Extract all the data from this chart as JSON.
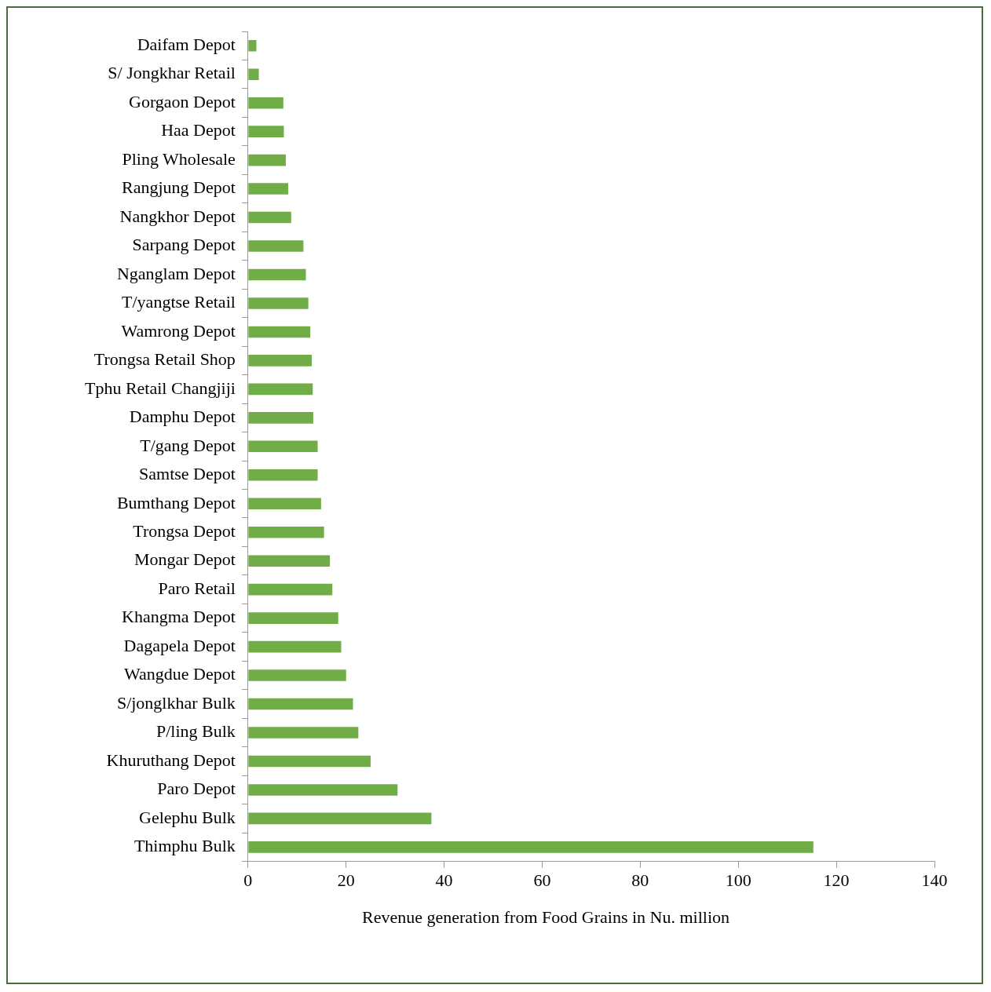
{
  "chart_data": {
    "type": "bar",
    "orientation": "horizontal",
    "xlabel": "Revenue generation from Food Grains in Nu. million",
    "categories": [
      "Daifam Depot",
      "S/ Jongkhar Retail",
      "Gorgaon Depot",
      "Haa Depot",
      "Pling Wholesale",
      "Rangjung Depot",
      "Nangkhor Depot",
      "Sarpang Depot",
      "Nganglam Depot",
      "T/yangtse Retail",
      "Wamrong Depot",
      "Trongsa Retail Shop",
      "Tphu Retail Changjiji",
      "Damphu Depot",
      "T/gang Depot",
      "Samtse Depot",
      "Bumthang Depot",
      "Trongsa Depot",
      "Mongar Depot",
      "Paro Retail",
      "Khangma Depot",
      "Dagapela Depot",
      "Wangdue Depot",
      "S/jonglkhar Bulk",
      "P/ling Bulk",
      "Khuruthang Depot",
      "Paro Depot",
      "Gelephu Bulk",
      "Thimphu Bulk"
    ],
    "values": [
      1.7,
      2.2,
      7.2,
      7.3,
      7.7,
      8.2,
      8.8,
      11.3,
      11.8,
      12.3,
      12.7,
      13.0,
      13.2,
      13.3,
      14.2,
      14.2,
      14.9,
      15.5,
      16.7,
      17.2,
      18.4,
      19.0,
      20.0,
      21.4,
      22.5,
      25.0,
      30.5,
      37.4,
      115.3
    ],
    "color": "#70ad47",
    "xlim": [
      0,
      140
    ],
    "xticks": [
      0,
      20,
      40,
      60,
      80,
      100,
      120,
      140
    ],
    "grid": false,
    "legend": false
  }
}
